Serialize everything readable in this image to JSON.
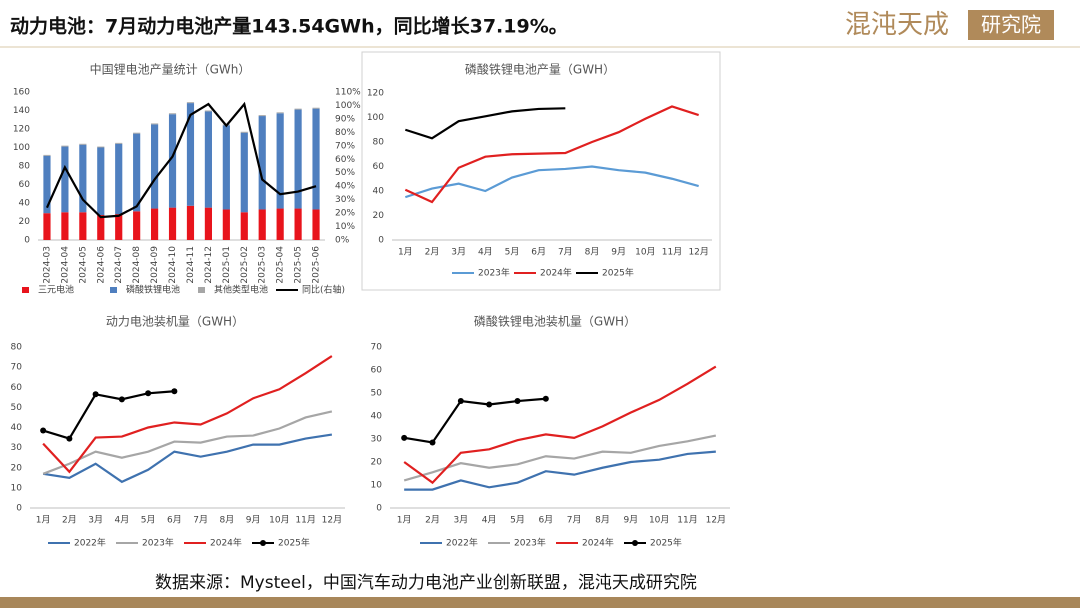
{
  "header": {
    "title": "动力电池：7月动力电池产量143.54GWh，同比增长37.19%。",
    "logo": "混沌天成",
    "logo_box": "研究院"
  },
  "footer": {
    "source": "数据来源：Mysteel，中国汽车动力电池产业创新联盟，混沌天成研究院"
  },
  "chart_data": [
    {
      "type": "bar",
      "stacked": true,
      "title": "中国锂电池产量统计（GWh）",
      "categories": [
        "2024-03",
        "2024-04",
        "2024-05",
        "2024-06",
        "2024-07",
        "2024-08",
        "2024-09",
        "2024-10",
        "2024-11",
        "2024-12",
        "2025-01",
        "2025-02",
        "2025-03",
        "2025-04",
        "2025-05",
        "2025-06"
      ],
      "series": [
        {
          "name": "三元电池",
          "color": "#e8141c",
          "values": [
            29,
            30,
            30,
            27,
            28,
            31,
            34,
            35,
            37,
            35,
            33,
            30,
            33,
            34,
            34,
            33
          ]
        },
        {
          "name": "磷酸铁锂电池",
          "color": "#4f7fbf",
          "values": [
            62,
            71,
            73,
            73,
            76,
            84,
            91,
            101,
            111,
            104,
            91,
            86,
            101,
            103,
            107,
            109
          ]
        },
        {
          "name": "其他类型电池",
          "color": "#a6a6a6",
          "values": [
            1,
            1,
            1,
            1,
            1,
            1,
            1,
            1,
            1,
            1,
            1,
            1,
            1,
            1,
            1,
            1
          ]
        },
        {
          "name": "同比(右轴)",
          "color": "#000000",
          "type": "line",
          "axis": "y2",
          "values": [
            24,
            54,
            30,
            17,
            18,
            25,
            45,
            62,
            93,
            101,
            85,
            101,
            45,
            34,
            36,
            40
          ]
        }
      ],
      "ylim": [
        0,
        160
      ],
      "yticks": [
        0,
        20,
        40,
        60,
        80,
        100,
        120,
        140,
        160
      ],
      "y2lim": [
        0,
        110
      ],
      "y2ticks": [
        {
          "value": 0,
          "label": "0%"
        },
        {
          "value": 10,
          "label": "10%"
        },
        {
          "value": 20,
          "label": "20%"
        },
        {
          "value": 30,
          "label": "30%"
        },
        {
          "value": 40,
          "label": "40%"
        },
        {
          "value": 50,
          "label": "50%"
        },
        {
          "value": 60,
          "label": "60%"
        },
        {
          "value": 70,
          "label": "70%"
        },
        {
          "value": 80,
          "label": "80%"
        },
        {
          "value": 90,
          "label": "90%"
        },
        {
          "value": 100,
          "label": "100%"
        },
        {
          "value": 110,
          "label": "110%"
        }
      ],
      "grid": false,
      "legend": "bottom"
    },
    {
      "type": "line",
      "title": "磷酸铁锂电池产量（GWH）",
      "categories": [
        "1月",
        "2月",
        "3月",
        "4月",
        "5月",
        "6月",
        "7月",
        "8月",
        "9月",
        "10月",
        "11月",
        "12月"
      ],
      "series": [
        {
          "name": "2023年",
          "color": "#5b9bd5",
          "values": [
            35,
            42,
            46,
            40,
            51,
            57,
            58,
            60,
            57,
            55,
            50,
            44
          ]
        },
        {
          "name": "2024年",
          "color": "#e02020",
          "values": [
            41,
            31,
            59,
            68,
            70,
            70.5,
            71,
            80,
            88,
            99,
            109,
            102
          ]
        },
        {
          "name": "2025年",
          "color": "#000000",
          "values": [
            90,
            83,
            97,
            101,
            105,
            107,
            107.5,
            null,
            null,
            null,
            null,
            null
          ]
        }
      ],
      "ylim": [
        0,
        120
      ],
      "yticks": [
        0,
        20,
        40,
        60,
        80,
        100,
        120
      ],
      "grid": false,
      "legend": "bottom"
    },
    {
      "type": "line",
      "title": "动力电池装机量（GWH）",
      "categories": [
        "1月",
        "2月",
        "3月",
        "4月",
        "5月",
        "6月",
        "7月",
        "8月",
        "9月",
        "10月",
        "11月",
        "12月"
      ],
      "series": [
        {
          "name": "2022年",
          "color": "#3f72af",
          "values": [
            17,
            15,
            22,
            13,
            19,
            28,
            25.5,
            28,
            31.5,
            31.5,
            34.5,
            36.5
          ]
        },
        {
          "name": "2023年",
          "color": "#a6a6a6",
          "values": [
            17,
            22,
            28,
            25,
            28,
            33,
            32.5,
            35.5,
            36,
            39.5,
            45,
            48
          ]
        },
        {
          "name": "2024年",
          "color": "#e02020",
          "values": [
            32,
            18,
            35,
            35.5,
            40,
            42.5,
            41.5,
            47,
            54.5,
            59,
            67,
            75.5
          ]
        },
        {
          "name": "2025年",
          "color": "#000000",
          "markers": true,
          "values": [
            38.5,
            34.5,
            56.5,
            54,
            57,
            58,
            null,
            null,
            null,
            null,
            null,
            null
          ]
        }
      ],
      "ylim": [
        0,
        80
      ],
      "yticks": [
        0,
        10,
        20,
        30,
        40,
        50,
        60,
        70,
        80
      ],
      "grid": false,
      "legend": "bottom"
    },
    {
      "type": "line",
      "title": "磷酸铁锂电池装机量（GWH）",
      "categories": [
        "1月",
        "2月",
        "3月",
        "4月",
        "5月",
        "6月",
        "7月",
        "8月",
        "9月",
        "10月",
        "11月",
        "12月"
      ],
      "series": [
        {
          "name": "2022年",
          "color": "#3f72af",
          "values": [
            8,
            8,
            12,
            9,
            11,
            16,
            14.5,
            17.5,
            20,
            21,
            23.5,
            24.5
          ]
        },
        {
          "name": "2023年",
          "color": "#a6a6a6",
          "values": [
            12,
            15.5,
            19.5,
            17.5,
            19,
            22.5,
            21.5,
            24.5,
            24,
            27,
            29,
            31.5
          ]
        },
        {
          "name": "2024年",
          "color": "#e02020",
          "values": [
            20,
            11,
            24,
            25.5,
            29.5,
            32,
            30.5,
            35.5,
            41.5,
            47,
            54,
            61.5
          ]
        },
        {
          "name": "2025年",
          "color": "#000000",
          "markers": true,
          "values": [
            30.5,
            28.5,
            46.5,
            45,
            46.5,
            47.5,
            null,
            null,
            null,
            null,
            null,
            null
          ]
        }
      ],
      "ylim": [
        0,
        70
      ],
      "yticks": [
        0,
        10,
        20,
        30,
        40,
        50,
        60,
        70
      ],
      "grid": false,
      "legend": "bottom"
    }
  ]
}
